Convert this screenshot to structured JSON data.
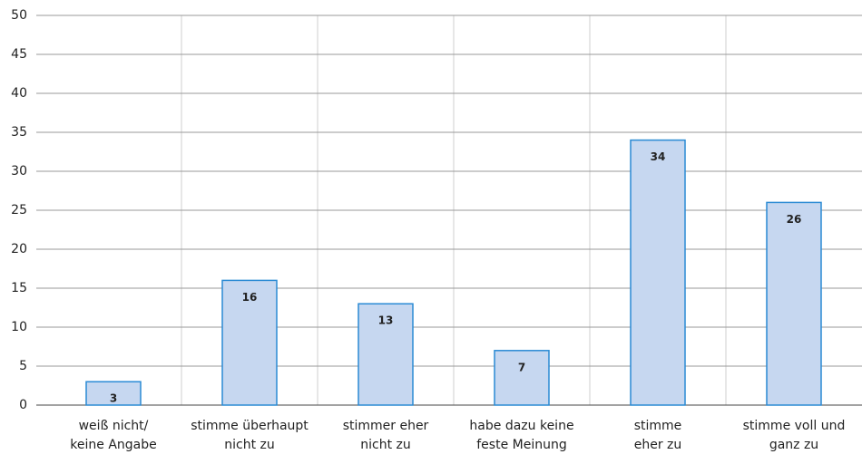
{
  "chart_data": {
    "type": "bar",
    "categories": [
      [
        "weiß nicht/",
        "keine Angabe"
      ],
      [
        "stimme überhaupt",
        "nicht zu"
      ],
      [
        "stimmer eher",
        "nicht zu"
      ],
      [
        "habe dazu keine",
        "feste Meinung"
      ],
      [
        "stimme",
        "eher zu"
      ],
      [
        "stimme voll und",
        "ganz zu"
      ]
    ],
    "values": [
      3,
      16,
      13,
      7,
      34,
      26
    ],
    "color": "#c6d7f0",
    "edge_color": "#2a8ad4",
    "ylim": [
      0,
      50
    ],
    "yticks": [
      0,
      5,
      10,
      15,
      20,
      25,
      30,
      35,
      40,
      45,
      50
    ],
    "grid": true
  }
}
